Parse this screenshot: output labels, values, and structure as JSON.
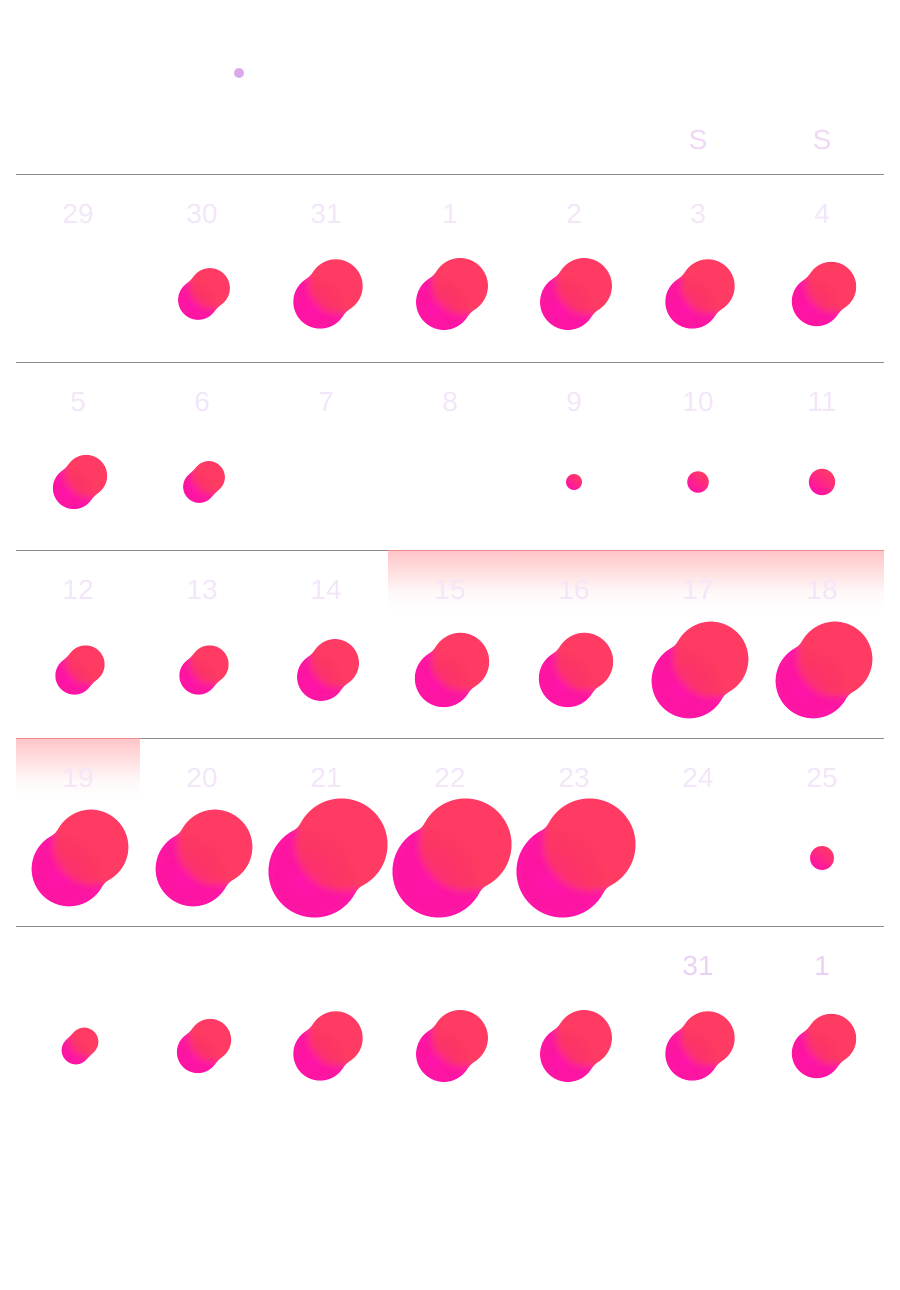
{
  "colors": {
    "indicator": "#dba8ee",
    "weekday_text": "#efd8f6",
    "day_text_faint": "#f3e6f8",
    "day_text_strong": "#ead2f5",
    "blob_top": "#ff3a64",
    "blob_bottom": "#ff12a8",
    "divider": "#8d8d8d"
  },
  "weekdays": [
    "",
    "",
    "",
    "",
    "",
    "S",
    "S"
  ],
  "weeks": [
    {
      "days": [
        {
          "label": "29",
          "size": 0
        },
        {
          "label": "30",
          "size": 0.42
        },
        {
          "label": "31",
          "size": 0.56
        },
        {
          "label": "1",
          "size": 0.58
        },
        {
          "label": "2",
          "size": 0.58
        },
        {
          "label": "3",
          "size": 0.56
        },
        {
          "label": "4",
          "size": 0.52
        }
      ]
    },
    {
      "highlight": [
        3,
        6
      ],
      "days": [
        {
          "label": "5",
          "size": 0.44
        },
        {
          "label": "6",
          "size": 0.34
        },
        {
          "label": "7",
          "size": 0
        },
        {
          "label": "8",
          "size": 0
        },
        {
          "label": "9",
          "size": 0.06
        },
        {
          "label": "10",
          "size": 0.09
        },
        {
          "label": "11",
          "size": 0.11
        }
      ]
    },
    {
      "highlight": [
        0,
        0
      ],
      "days": [
        {
          "label": "12",
          "size": 0.4
        },
        {
          "label": "13",
          "size": 0.4
        },
        {
          "label": "14",
          "size": 0.5
        },
        {
          "label": "15",
          "size": 0.6
        },
        {
          "label": "16",
          "size": 0.6
        },
        {
          "label": "17",
          "size": 0.78
        },
        {
          "label": "18",
          "size": 0.78
        }
      ]
    },
    {
      "days": [
        {
          "label": "19",
          "size": 0.78
        },
        {
          "label": "20",
          "size": 0.78
        },
        {
          "label": "21",
          "size": 0.96
        },
        {
          "label": "22",
          "size": 0.96
        },
        {
          "label": "23",
          "size": 0.96
        },
        {
          "label": "24",
          "size": 0
        },
        {
          "label": "25",
          "size": 0.1
        }
      ]
    },
    {
      "days": [
        {
          "label": "",
          "size": 0.3
        },
        {
          "label": "",
          "size": 0.44
        },
        {
          "label": "",
          "size": 0.56
        },
        {
          "label": "",
          "size": 0.58
        },
        {
          "label": "",
          "size": 0.58
        },
        {
          "label": "31",
          "size": 0.56,
          "strong": true
        },
        {
          "label": "1",
          "size": 0.52,
          "strong": true
        }
      ]
    }
  ]
}
